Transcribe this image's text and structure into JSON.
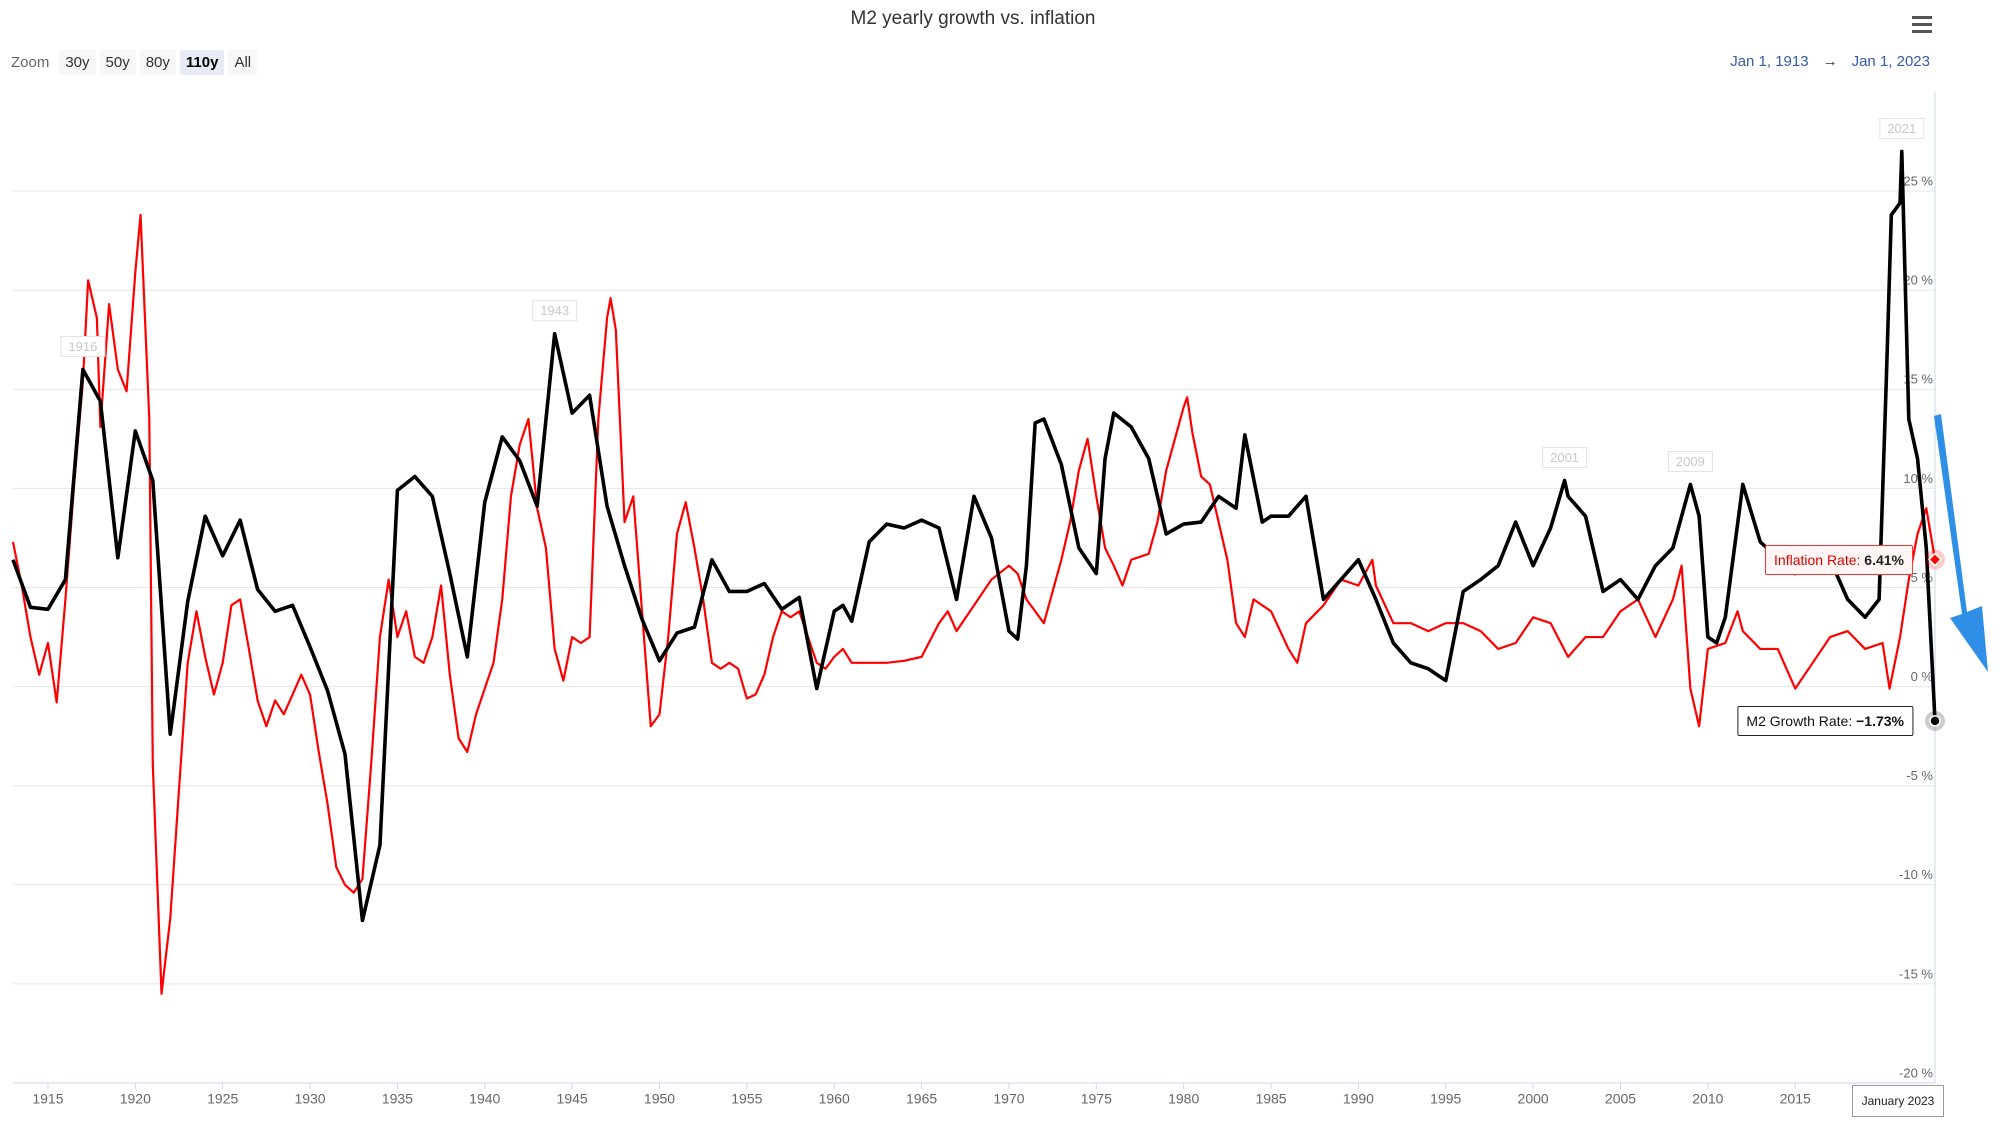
{
  "chart_data": {
    "type": "line",
    "title": "M2 yearly growth vs. inflation",
    "zoom": {
      "label": "Zoom",
      "buttons": [
        "30y",
        "50y",
        "80y",
        "110y",
        "All"
      ],
      "selected": 3
    },
    "range": {
      "from": "Jan 1, 1913",
      "separator": "→",
      "to": "Jan 1, 2023"
    },
    "crosshair_label": "January 2023",
    "annotations": [
      "1916",
      "1943",
      "2001",
      "2009",
      "2021"
    ],
    "xlim": [
      1913,
      2023
    ],
    "xticks": [
      1915,
      1920,
      1925,
      1930,
      1935,
      1940,
      1945,
      1950,
      1955,
      1960,
      1965,
      1970,
      1975,
      1980,
      1985,
      1990,
      1995,
      2000,
      2005,
      2010,
      2015
    ],
    "ylim": [
      -20,
      30
    ],
    "yticks": [
      {
        "value": -20,
        "label": "-20 %"
      },
      {
        "value": -15,
        "label": "-15 %"
      },
      {
        "value": -10,
        "label": "-10 %"
      },
      {
        "value": -5,
        "label": "-5 %"
      },
      {
        "value": 0,
        "label": "0 %"
      },
      {
        "value": 5,
        "label": "5 %"
      },
      {
        "value": 10,
        "label": "10 %"
      },
      {
        "value": 15,
        "label": "15 %"
      },
      {
        "value": 20,
        "label": "20 %"
      },
      {
        "value": 25,
        "label": "25 %"
      }
    ],
    "grid": true,
    "series": [
      {
        "name": "M2 Growth Rate",
        "color": "#000000",
        "last_label": "−1.73%",
        "x": [
          1913,
          1914,
          1915,
          1916,
          1917,
          1918,
          1919,
          1920,
          1921,
          1922,
          1923,
          1924,
          1925,
          1926,
          1927,
          1928,
          1929,
          1930,
          1931,
          1932,
          1933,
          1934,
          1935,
          1936,
          1937,
          1938,
          1939,
          1940,
          1941,
          1942,
          1943,
          1944,
          1945,
          1946,
          1947,
          1948,
          1949,
          1950,
          1951,
          1952,
          1953,
          1954,
          1955,
          1956,
          1957,
          1958,
          1959,
          1960,
          1960.5,
          1961,
          1962,
          1963,
          1964,
          1965,
          1966,
          1967,
          1968,
          1969,
          1970,
          1970.5,
          1971,
          1971.5,
          1972,
          1973,
          1974,
          1975,
          1975.5,
          1976,
          1977,
          1978,
          1979,
          1980,
          1981,
          1982,
          1983,
          1983.5,
          1984.5,
          1985,
          1986,
          1987,
          1988,
          1989,
          1990,
          1991,
          1992,
          1993,
          1994,
          1995,
          1996,
          1997,
          1998,
          1999,
          2000,
          2001,
          2001.8,
          2002,
          2003,
          2004,
          2005,
          2006,
          2007,
          2008,
          2009,
          2009.5,
          2010,
          2010.5,
          2011,
          2012,
          2013,
          2014,
          2015,
          2016,
          2017,
          2018,
          2019,
          2019.8,
          2020.2,
          2020.5,
          2021,
          2021.1,
          2021.5,
          2022,
          2022.5,
          2023
        ],
        "values": [
          6.4,
          4.0,
          3.9,
          5.4,
          16.0,
          14.4,
          6.5,
          12.9,
          10.4,
          -2.4,
          4.3,
          8.6,
          6.6,
          8.4,
          4.9,
          3.8,
          4.1,
          2.0,
          -0.2,
          -3.4,
          -11.8,
          -8.0,
          9.9,
          10.6,
          9.6,
          5.7,
          1.5,
          9.3,
          12.6,
          11.4,
          9.1,
          17.8,
          13.8,
          14.7,
          9.1,
          6.1,
          3.4,
          1.3,
          2.7,
          3.0,
          6.4,
          4.8,
          4.8,
          5.2,
          3.9,
          4.5,
          -0.1,
          3.8,
          4.1,
          3.3,
          7.3,
          8.2,
          8.0,
          8.4,
          8.0,
          4.4,
          9.6,
          7.5,
          2.8,
          2.4,
          6.1,
          13.3,
          13.5,
          11.2,
          7.0,
          5.7,
          11.5,
          13.8,
          13.1,
          11.5,
          7.7,
          8.2,
          8.3,
          9.6,
          9.0,
          12.7,
          8.3,
          8.6,
          8.6,
          9.6,
          4.4,
          5.4,
          6.4,
          4.4,
          2.2,
          1.2,
          0.9,
          0.3,
          4.8,
          5.4,
          6.1,
          8.3,
          6.1,
          8.0,
          10.4,
          9.6,
          8.6,
          4.8,
          5.4,
          4.4,
          6.1,
          7.0,
          10.2,
          8.6,
          2.5,
          2.2,
          3.5,
          10.2,
          7.3,
          6.5,
          5.7,
          6.4,
          6.4,
          4.4,
          3.5,
          4.4,
          15.1,
          23.8,
          24.4,
          27.0,
          13.5,
          11.5,
          7.0,
          -1.73
        ]
      },
      {
        "name": "Inflation Rate",
        "color": "#ff0000",
        "last_label": "6.41%",
        "x": [
          1913,
          1913.5,
          1914,
          1914.5,
          1915,
          1915.5,
          1916,
          1916.5,
          1917,
          1917.3,
          1917.8,
          1918,
          1918.5,
          1919,
          1919.5,
          1920,
          1920.3,
          1920.8,
          1921,
          1921.5,
          1922,
          1922.5,
          1923,
          1923.5,
          1924,
          1924.5,
          1925,
          1925.5,
          1926,
          1926.5,
          1927,
          1927.5,
          1928,
          1928.5,
          1929,
          1929.5,
          1930,
          1930.5,
          1931,
          1931.5,
          1932,
          1932.5,
          1933,
          1933.5,
          1934,
          1934.5,
          1935,
          1935.5,
          1936,
          1936.5,
          1937,
          1937.5,
          1938,
          1938.5,
          1939,
          1939.5,
          1940,
          1940.5,
          1941,
          1941.5,
          1942,
          1942.5,
          1943,
          1943.5,
          1944,
          1944.5,
          1945,
          1945.5,
          1946,
          1946.5,
          1947,
          1947.2,
          1947.5,
          1947.8,
          1948,
          1948.5,
          1949,
          1949.5,
          1950,
          1950.5,
          1951,
          1951.5,
          1952,
          1952.5,
          1953,
          1953.5,
          1954,
          1954.5,
          1955,
          1955.5,
          1956,
          1956.5,
          1957,
          1957.5,
          1958,
          1958.5,
          1959,
          1959.5,
          1960,
          1960.5,
          1961,
          1962,
          1963,
          1964,
          1965,
          1966,
          1966.5,
          1967,
          1968,
          1969,
          1970,
          1970.5,
          1971,
          1972,
          1973,
          1973.5,
          1974,
          1974.5,
          1975,
          1975.5,
          1976,
          1976.5,
          1977,
          1978,
          1978.5,
          1979,
          1979.5,
          1980,
          1980.2,
          1980.5,
          1981,
          1981.5,
          1982,
          1982.5,
          1983,
          1983.5,
          1984,
          1985,
          1986,
          1986.5,
          1987,
          1988,
          1989,
          1990,
          1990.8,
          1991,
          1992,
          1993,
          1994,
          1995,
          1996,
          1997,
          1998,
          1999,
          2000,
          2001,
          2002,
          2003,
          2004,
          2005,
          2006,
          2007,
          2008,
          2008.5,
          2009,
          2009.5,
          2010,
          2011,
          2011.7,
          2012,
          2013,
          2014,
          2015,
          2016,
          2017,
          2018,
          2019,
          2020,
          2020.4,
          2021,
          2021.5,
          2022,
          2022.5,
          2023
        ],
        "values": [
          7.3,
          5.1,
          2.5,
          0.6,
          2.2,
          -0.8,
          4.4,
          10.2,
          15.4,
          20.5,
          18.6,
          13.1,
          19.3,
          16.0,
          14.9,
          20.9,
          23.8,
          13.5,
          -3.9,
          -15.5,
          -11.7,
          -5.2,
          1.2,
          3.8,
          1.5,
          -0.4,
          1.2,
          4.1,
          4.4,
          1.9,
          -0.7,
          -2.0,
          -0.7,
          -1.4,
          -0.4,
          0.6,
          -0.4,
          -3.3,
          -5.9,
          -9.1,
          -10.0,
          -10.4,
          -9.7,
          -3.9,
          2.5,
          5.4,
          2.5,
          3.8,
          1.5,
          1.2,
          2.5,
          5.1,
          0.6,
          -2.6,
          -3.3,
          -1.4,
          -0.1,
          1.2,
          4.4,
          9.6,
          12.2,
          13.5,
          9.0,
          7.0,
          1.9,
          0.3,
          2.5,
          2.2,
          2.5,
          13.5,
          18.6,
          19.6,
          18.0,
          12.2,
          8.3,
          9.6,
          3.8,
          -2.0,
          -1.4,
          2.5,
          7.7,
          9.3,
          7.0,
          4.4,
          1.2,
          0.9,
          1.2,
          0.9,
          -0.6,
          -0.4,
          0.6,
          2.5,
          3.8,
          3.5,
          3.8,
          2.5,
          1.2,
          0.9,
          1.5,
          1.9,
          1.2,
          1.2,
          1.2,
          1.3,
          1.5,
          3.2,
          3.8,
          2.8,
          4.1,
          5.4,
          6.1,
          5.7,
          4.4,
          3.2,
          6.4,
          8.3,
          10.9,
          12.5,
          9.6,
          7.0,
          6.1,
          5.1,
          6.4,
          6.7,
          8.3,
          10.9,
          12.5,
          14.1,
          14.6,
          12.8,
          10.6,
          10.2,
          8.3,
          6.4,
          3.2,
          2.5,
          4.4,
          3.8,
          1.9,
          1.2,
          3.2,
          4.1,
          5.4,
          5.1,
          6.4,
          5.1,
          3.2,
          3.2,
          2.8,
          3.2,
          3.2,
          2.8,
          1.9,
          2.2,
          3.5,
          3.2,
          1.5,
          2.5,
          2.5,
          3.8,
          4.4,
          2.5,
          4.4,
          6.1,
          -0.1,
          -2.0,
          1.9,
          2.2,
          3.8,
          2.8,
          1.9,
          1.9,
          -0.1,
          1.2,
          2.5,
          2.8,
          1.9,
          2.2,
          -0.1,
          2.5,
          5.4,
          7.7,
          9.0,
          6.41
        ]
      }
    ]
  }
}
